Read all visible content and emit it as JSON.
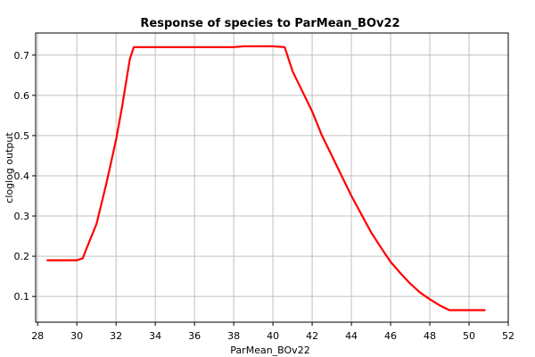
{
  "chart_data": {
    "type": "line",
    "title": "Response of species to ParMean_BOv22",
    "xlabel": "ParMean_BOv22",
    "ylabel": "cloglog output",
    "xlim": [
      27.9,
      52.0
    ],
    "ylim": [
      0.036,
      0.755
    ],
    "xticks": [
      28,
      30,
      32,
      34,
      36,
      38,
      40,
      42,
      44,
      46,
      48,
      50,
      52
    ],
    "yticks": [
      0.1,
      0.2,
      0.3,
      0.4,
      0.5,
      0.6,
      0.7
    ],
    "grid": true,
    "series": [
      {
        "color": "#ff0000",
        "x": [
          28.5,
          30.0,
          30.3,
          30.5,
          31.0,
          31.5,
          32.0,
          32.3,
          32.5,
          32.7,
          32.9,
          34.0,
          36.0,
          38.0,
          38.5,
          40.0,
          40.6,
          40.8,
          41.0,
          41.5,
          42.0,
          42.5,
          43.0,
          43.5,
          44.0,
          44.5,
          45.0,
          45.5,
          46.0,
          46.5,
          47.0,
          47.5,
          48.0,
          48.5,
          49.0,
          49.5,
          50.0,
          50.5,
          50.8
        ],
        "y": [
          0.19,
          0.19,
          0.195,
          0.22,
          0.28,
          0.38,
          0.49,
          0.57,
          0.63,
          0.69,
          0.72,
          0.72,
          0.72,
          0.72,
          0.722,
          0.722,
          0.72,
          0.69,
          0.66,
          0.61,
          0.56,
          0.5,
          0.45,
          0.4,
          0.35,
          0.305,
          0.26,
          0.222,
          0.186,
          0.158,
          0.132,
          0.11,
          0.093,
          0.078,
          0.066,
          0.066,
          0.066,
          0.066,
          0.066
        ]
      }
    ]
  }
}
